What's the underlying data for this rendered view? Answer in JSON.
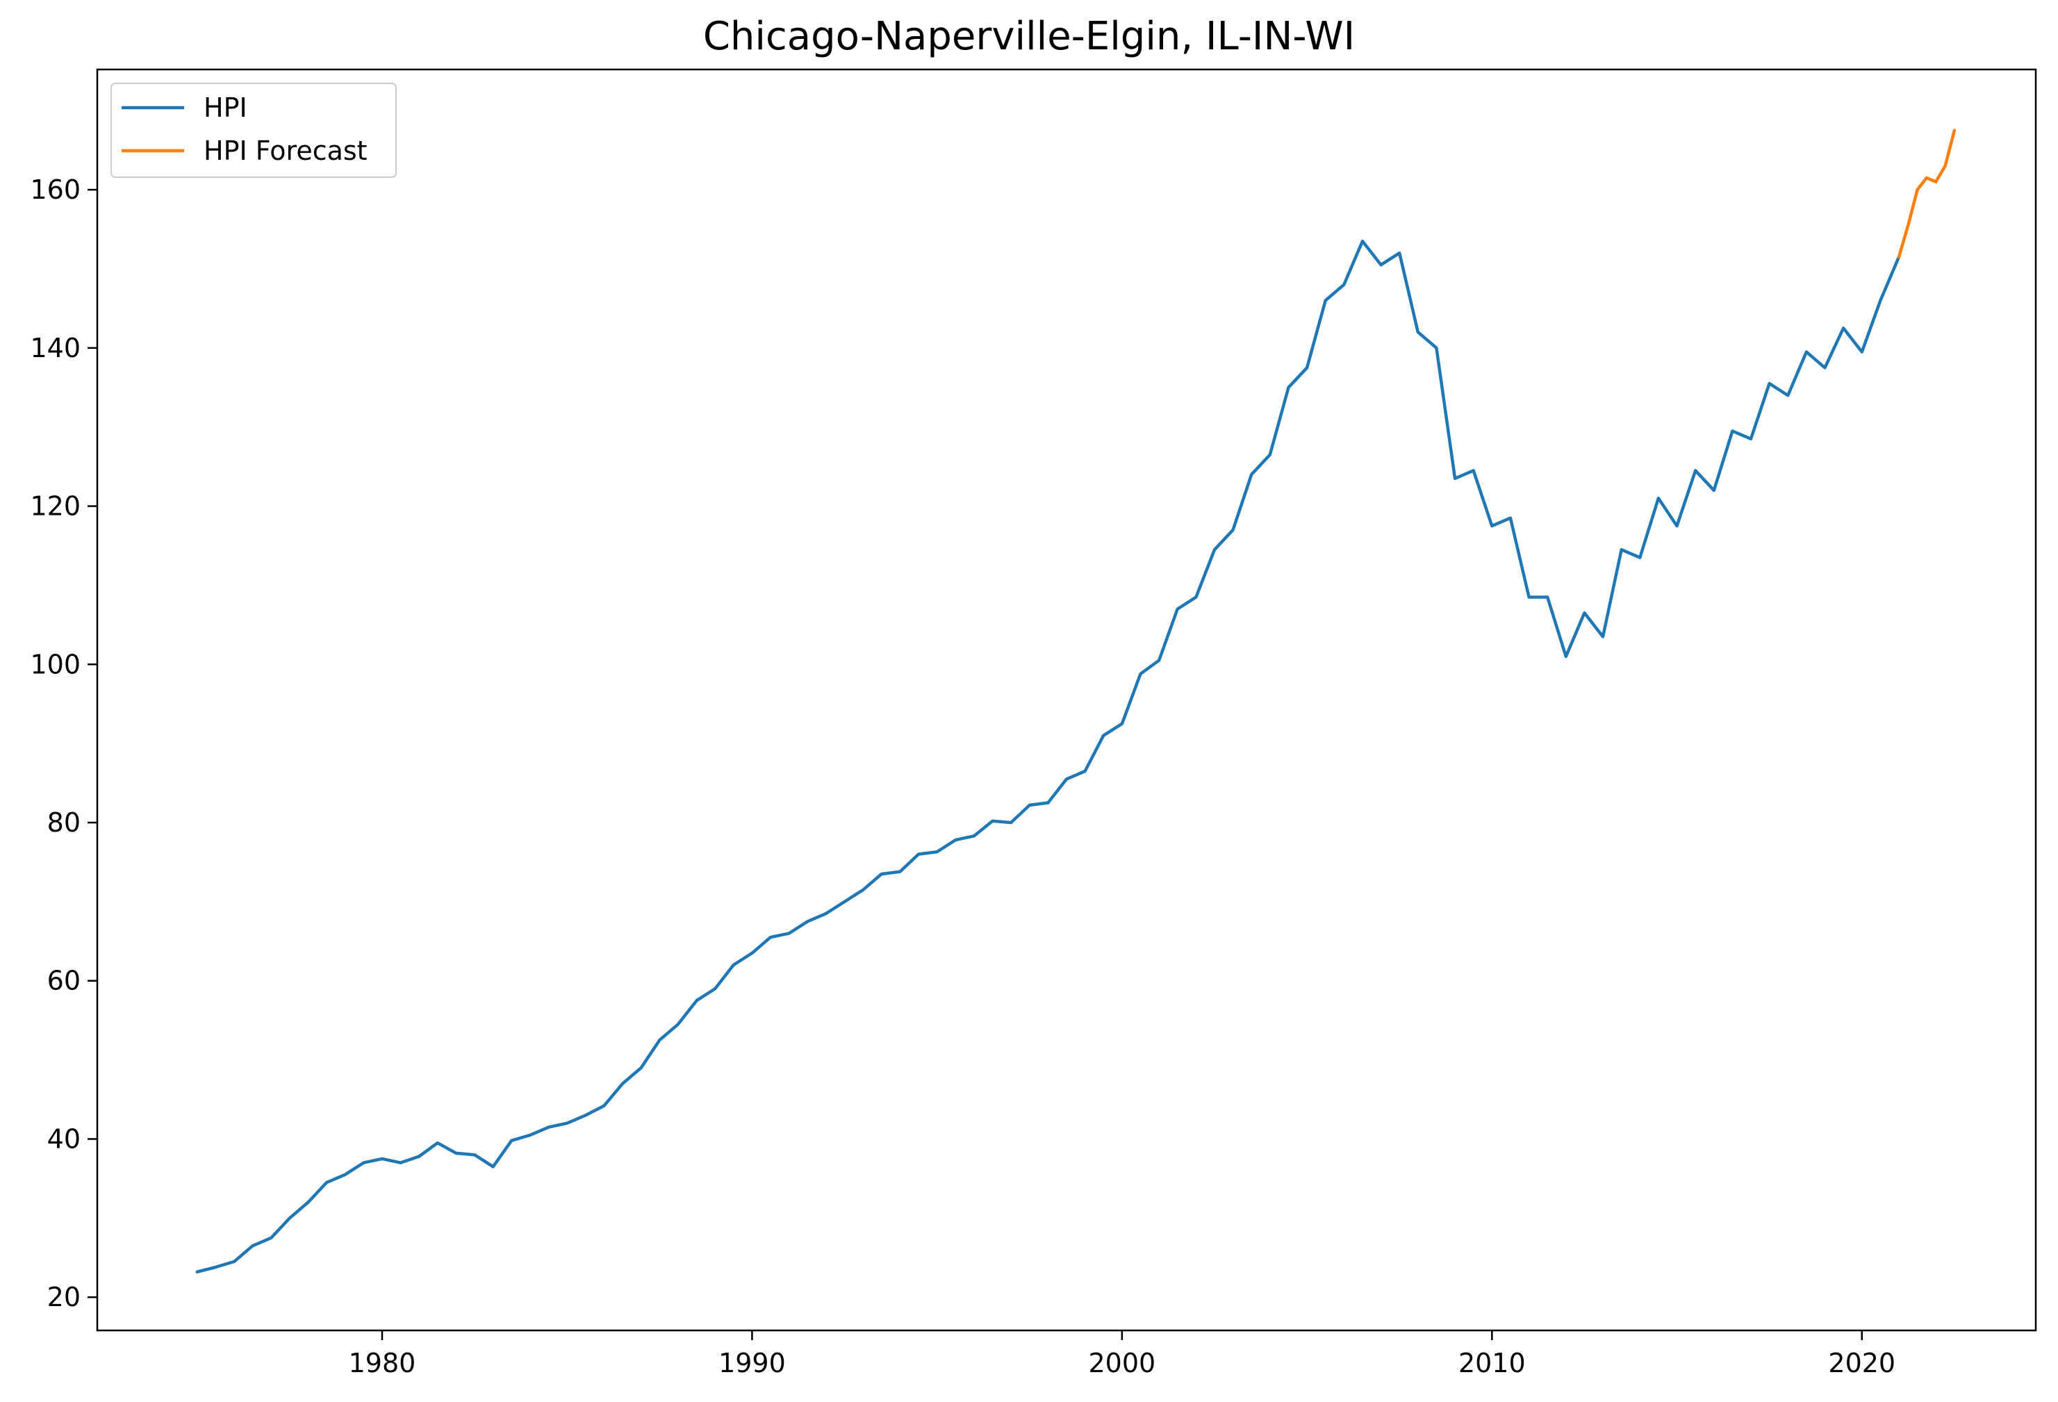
{
  "chart_data": {
    "type": "line",
    "title": "Chicago-Naperville-Elgin, IL-IN-WI",
    "xlabel": "",
    "ylabel": "",
    "xlim": [
      1972.3,
      2024.7
    ],
    "ylim": [
      15.8,
      175.2
    ],
    "x_ticks": [
      1980,
      1990,
      2000,
      2010,
      2020
    ],
    "y_ticks": [
      20,
      40,
      60,
      80,
      100,
      120,
      140,
      160
    ],
    "grid": false,
    "legend": {
      "placement": "top-left",
      "entries": [
        "HPI",
        "HPI Forecast"
      ]
    },
    "colors": {
      "HPI": "#1f77b4",
      "HPI Forecast": "#ff7f0e"
    },
    "series": [
      {
        "name": "HPI",
        "x": [
          1975.0,
          1975.5,
          1976.0,
          1976.5,
          1977.0,
          1977.5,
          1978.0,
          1978.5,
          1979.0,
          1979.5,
          1980.0,
          1980.5,
          1981.0,
          1981.5,
          1982.0,
          1982.5,
          1983.0,
          1983.5,
          1984.0,
          1984.5,
          1985.0,
          1985.5,
          1986.0,
          1986.5,
          1987.0,
          1987.5,
          1988.0,
          1988.5,
          1989.0,
          1989.5,
          1990.0,
          1990.5,
          1991.0,
          1991.5,
          1992.0,
          1992.5,
          1993.0,
          1993.5,
          1994.0,
          1994.5,
          1995.0,
          1995.5,
          1996.0,
          1996.5,
          1997.0,
          1997.5,
          1998.0,
          1998.5,
          1999.0,
          1999.5,
          2000.0,
          2000.5,
          2001.0,
          2001.5,
          2002.0,
          2002.5,
          2003.0,
          2003.5,
          2004.0,
          2004.5,
          2005.0,
          2005.5,
          2006.0,
          2006.5,
          2007.0,
          2007.5,
          2008.0,
          2008.5,
          2009.0,
          2009.5,
          2010.0,
          2010.5,
          2011.0,
          2011.5,
          2012.0,
          2012.5,
          2013.0,
          2013.5,
          2014.0,
          2014.5,
          2015.0,
          2015.5,
          2016.0,
          2016.5,
          2017.0,
          2017.5,
          2018.0,
          2018.5,
          2019.0,
          2019.5,
          2020.0,
          2020.5,
          2021.0
        ],
        "values": [
          23.2,
          23.8,
          24.5,
          26.5,
          27.5,
          30.0,
          32.0,
          34.5,
          35.5,
          37.0,
          37.5,
          37.0,
          37.8,
          39.5,
          38.2,
          38.0,
          36.5,
          39.8,
          40.5,
          41.5,
          42.0,
          43.0,
          44.2,
          47.0,
          49.0,
          52.5,
          54.5,
          57.5,
          59.0,
          62.0,
          63.5,
          65.5,
          66.0,
          67.5,
          68.5,
          70.0,
          71.5,
          73.5,
          73.8,
          76.0,
          76.3,
          77.8,
          78.3,
          80.2,
          80.0,
          82.2,
          82.5,
          85.5,
          86.5,
          91.0,
          92.5,
          98.8,
          100.5,
          107.0,
          108.5,
          114.5,
          117.0,
          124.0,
          126.5,
          135.0,
          137.5,
          146.0,
          148.0,
          153.5,
          150.5,
          152.0,
          142.0,
          140.0,
          123.5,
          124.5,
          117.5,
          118.5,
          108.5,
          108.5,
          101.0,
          106.5,
          103.5,
          114.5,
          113.5,
          121.0,
          117.5,
          124.5,
          122.0,
          129.5,
          128.5,
          135.5,
          134.0,
          139.5,
          137.5,
          142.5,
          139.5,
          146.0,
          151.5
        ]
      },
      {
        "name": "HPI Forecast",
        "x": [
          2021.0,
          2021.25,
          2021.5,
          2021.75,
          2022.0,
          2022.25,
          2022.5
        ],
        "values": [
          151.5,
          155.5,
          160.0,
          161.5,
          161.0,
          163.0,
          167.5
        ]
      }
    ]
  }
}
